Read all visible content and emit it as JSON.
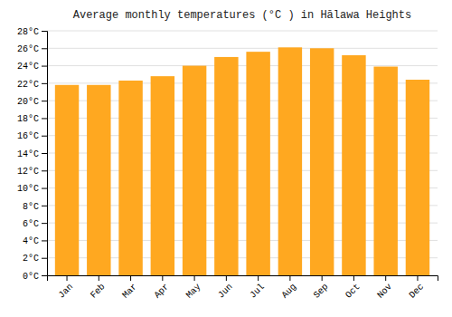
{
  "chart_data": {
    "type": "bar",
    "title": "Average monthly temperatures (°C ) in Hālawa Heights",
    "categories": [
      "Jan",
      "Feb",
      "Mar",
      "Apr",
      "May",
      "Jun",
      "Jul",
      "Aug",
      "Sep",
      "Oct",
      "Nov",
      "Dec"
    ],
    "values": [
      21.8,
      21.8,
      22.3,
      22.8,
      24.0,
      25.0,
      25.6,
      26.1,
      26.0,
      25.2,
      23.9,
      22.4
    ],
    "color": "#FFA820",
    "ylim": [
      0,
      28
    ],
    "yticks": [
      {
        "value": 0,
        "label": "0°C"
      },
      {
        "value": 2,
        "label": "2°C"
      },
      {
        "value": 4,
        "label": "4°C"
      },
      {
        "value": 6,
        "label": "6°C"
      },
      {
        "value": 8,
        "label": "8°C"
      },
      {
        "value": 10,
        "label": "10°C"
      },
      {
        "value": 12,
        "label": "12°C"
      },
      {
        "value": 14,
        "label": "14°C"
      },
      {
        "value": 16,
        "label": "16°C"
      },
      {
        "value": 18,
        "label": "18°C"
      },
      {
        "value": 20,
        "label": "20°C"
      },
      {
        "value": 22,
        "label": "22°C"
      },
      {
        "value": 24,
        "label": "24°C"
      },
      {
        "value": 26,
        "label": "26°C"
      },
      {
        "value": 28,
        "label": "28°C"
      }
    ],
    "grid": true
  }
}
